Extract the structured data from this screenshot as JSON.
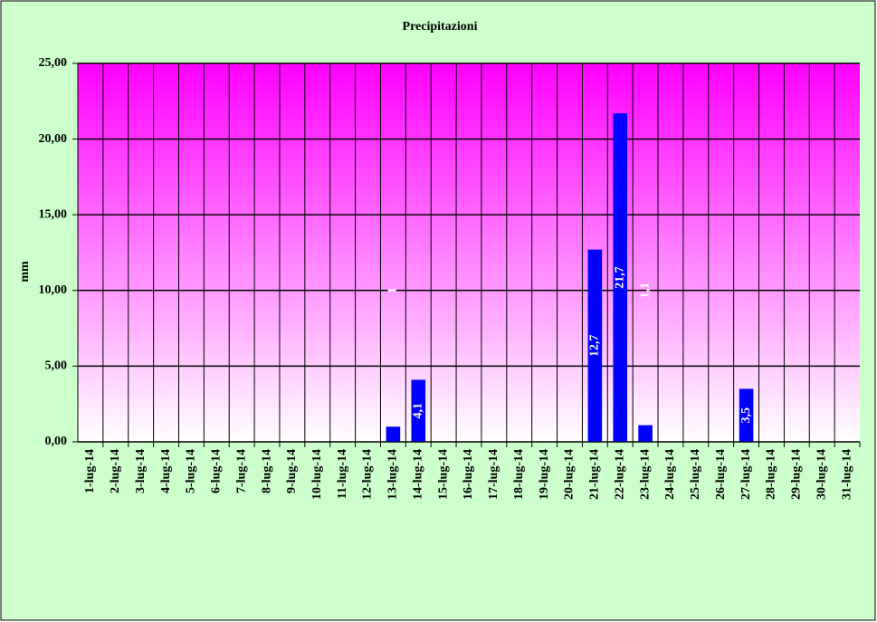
{
  "chart_data": {
    "type": "bar",
    "title": "Precipitazioni",
    "y_label": "mm",
    "categories": [
      "1-lug-14",
      "2-lug-14",
      "3-lug-14",
      "4-lug-14",
      "5-lug-14",
      "6-lug-14",
      "7-lug-14",
      "8-lug-14",
      "9-lug-14",
      "10-lug-14",
      "11-lug-14",
      "12-lug-14",
      "13-lug-14",
      "14-lug-14",
      "15-lug-14",
      "16-lug-14",
      "17-lug-14",
      "18-lug-14",
      "19-lug-14",
      "20-lug-14",
      "21-lug-14",
      "22-lug-14",
      "23-lug-14",
      "24-lug-14",
      "25-lug-14",
      "26-lug-14",
      "27-lug-14",
      "28-lug-14",
      "29-lug-14",
      "30-lug-14",
      "31-lug-14"
    ],
    "values": [
      0,
      0,
      0,
      0,
      0,
      0,
      0,
      0,
      0,
      0,
      0,
      0,
      1,
      4.1,
      0,
      0,
      0,
      0,
      0,
      0,
      12.7,
      21.7,
      1.1,
      0,
      0,
      0,
      3.5,
      0,
      0,
      0,
      0
    ],
    "value_labels": [
      null,
      null,
      null,
      null,
      null,
      null,
      null,
      null,
      null,
      null,
      null,
      null,
      "1",
      "4,1",
      null,
      null,
      null,
      null,
      null,
      null,
      "12,7",
      "21,7",
      "1,1",
      null,
      null,
      null,
      "3,5",
      null,
      null,
      null,
      null
    ],
    "color": "#0000ff",
    "ylim": [
      0,
      25
    ],
    "yticks": [
      {
        "value": 0,
        "label": "0,00"
      },
      {
        "value": 5,
        "label": "5,00"
      },
      {
        "value": 10,
        "label": "10,00"
      },
      {
        "value": 15,
        "label": "15,00"
      },
      {
        "value": 20,
        "label": "20,00"
      },
      {
        "value": 25,
        "label": "25,00"
      }
    ],
    "grid": true
  }
}
